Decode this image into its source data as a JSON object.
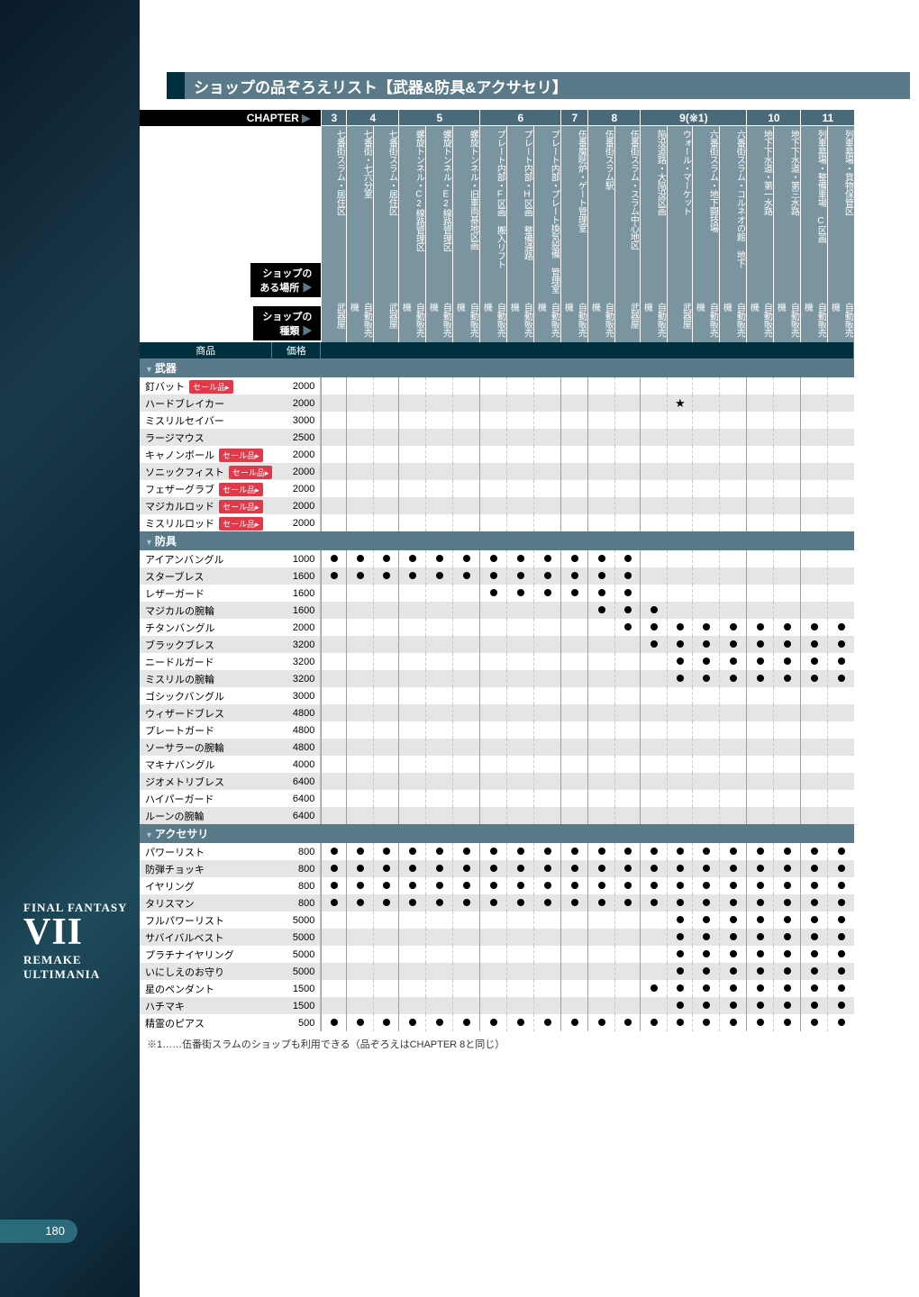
{
  "page_number": "180",
  "sidebar": {
    "line1": "FINAL FANTASY",
    "line2": "VII",
    "line3": "REMAKE",
    "line4": "ULTIMANIA"
  },
  "title": "ショップの品ぞろえリスト【武器&防具&アクサセリ】",
  "chapter_label": "CHAPTER",
  "location_label": "ショップの\nある場所",
  "shoptype_label": "ショップの\n種類",
  "col_item": "商品",
  "col_price": "価格",
  "chapters": [
    {
      "label": "3",
      "span": 1
    },
    {
      "label": "4",
      "span": 2
    },
    {
      "label": "5",
      "span": 3
    },
    {
      "label": "6",
      "span": 3
    },
    {
      "label": "7",
      "span": 1
    },
    {
      "label": "8",
      "span": 2
    },
    {
      "label": "9(※1)",
      "span": 4
    },
    {
      "label": "10",
      "span": 2
    },
    {
      "label": "11",
      "span": 2
    }
  ],
  "chapter_boundaries": [
    0,
    1,
    3,
    6,
    9,
    10,
    12,
    16,
    18
  ],
  "locations": [
    "七番街スラム・居住区",
    "七番街・七六分室",
    "七番街スラム・居住区",
    "螺旋トンネル・C2線路管理区",
    "螺旋トンネル・E2線路管理区",
    "螺旋トンネル・旧車両基地区画",
    "プレート内部・F区画 搬入リフト",
    "プレート内部・H区画 整備通路",
    "プレート内部・プレート換気設備 管理室",
    "伍番魔晄炉・ゲート管理室",
    "伍番街スラム駅",
    "伍番街スラム・スラム中心地区",
    "陥没道路・大陥没区画",
    "ウォール・マーケット",
    "六番街スラム・地下闘技場",
    "六番街スラム・コルネオの館 地下",
    "地下下水道・第一水路",
    "地下下水道・第三水路",
    "列車墓場・整備車場 C区画",
    "列車墓場・貨物保管区"
  ],
  "shoptypes": [
    "武器屋",
    "自動販売機",
    "武器屋",
    "自動販売機",
    "自動販売機",
    "自動販売機",
    "自動販売機",
    "自動販売機",
    "自動販売機",
    "自動販売機",
    "自動販売機",
    "武器屋",
    "自動販売機",
    "武器屋",
    "自動販売機",
    "自動販売機",
    "自動販売機",
    "自動販売機",
    "自動販売機",
    "自動販売機"
  ],
  "sections": [
    {
      "title": "武器",
      "items": [
        {
          "name": "釘バット",
          "sale": true,
          "price": "2000",
          "dots": []
        },
        {
          "name": "ハードブレイカー",
          "sale": false,
          "price": "2000",
          "dots": [],
          "star": 13
        },
        {
          "name": "ミスリルセイバー",
          "sale": false,
          "price": "3000",
          "dots": []
        },
        {
          "name": "ラージマウス",
          "sale": false,
          "price": "2500",
          "dots": []
        },
        {
          "name": "キャノンボール",
          "sale": true,
          "price": "2000",
          "dots": []
        },
        {
          "name": "ソニックフィスト",
          "sale": true,
          "price": "2000",
          "dots": []
        },
        {
          "name": "フェザーグラブ",
          "sale": true,
          "price": "2000",
          "dots": []
        },
        {
          "name": "マジカルロッド",
          "sale": true,
          "price": "2000",
          "dots": []
        },
        {
          "name": "ミスリルロッド",
          "sale": true,
          "price": "2000",
          "dots": []
        }
      ]
    },
    {
      "title": "防具",
      "items": [
        {
          "name": "アイアンバングル",
          "price": "1000",
          "dots": [
            0,
            1,
            2,
            3,
            4,
            5,
            6,
            7,
            8,
            9,
            10,
            11
          ]
        },
        {
          "name": "スターブレス",
          "price": "1600",
          "dots": [
            0,
            1,
            2,
            3,
            4,
            5,
            6,
            7,
            8,
            9,
            10,
            11
          ]
        },
        {
          "name": "レザーガード",
          "price": "1600",
          "dots": [
            6,
            7,
            8,
            9,
            10,
            11
          ]
        },
        {
          "name": "マジカルの腕輪",
          "price": "1600",
          "dots": [
            10,
            11,
            12
          ]
        },
        {
          "name": "チタンバングル",
          "price": "2000",
          "dots": [
            11,
            12,
            13,
            14,
            15,
            16,
            17,
            18,
            19
          ]
        },
        {
          "name": "ブラックブレス",
          "price": "3200",
          "dots": [
            12,
            13,
            14,
            15,
            16,
            17,
            18,
            19
          ]
        },
        {
          "name": "ニードルガード",
          "price": "3200",
          "dots": [
            13,
            14,
            15,
            16,
            17,
            18,
            19
          ]
        },
        {
          "name": "ミスリルの腕輪",
          "price": "3200",
          "dots": [
            13,
            14,
            15,
            16,
            17,
            18,
            19
          ]
        },
        {
          "name": "ゴシックバングル",
          "price": "3000",
          "dots": []
        },
        {
          "name": "ウィザードブレス",
          "price": "4800",
          "dots": []
        },
        {
          "name": "プレートガード",
          "price": "4800",
          "dots": []
        },
        {
          "name": "ソーサラーの腕輪",
          "price": "4800",
          "dots": []
        },
        {
          "name": "マキナバングル",
          "price": "4000",
          "dots": []
        },
        {
          "name": "ジオメトリブレス",
          "price": "6400",
          "dots": []
        },
        {
          "name": "ハイパーガード",
          "price": "6400",
          "dots": []
        },
        {
          "name": "ルーンの腕輪",
          "price": "6400",
          "dots": []
        }
      ]
    },
    {
      "title": "アクセサリ",
      "items": [
        {
          "name": "パワーリスト",
          "price": "800",
          "dots": [
            0,
            1,
            2,
            3,
            4,
            5,
            6,
            7,
            8,
            9,
            10,
            11,
            12,
            13,
            14,
            15,
            16,
            17,
            18,
            19
          ]
        },
        {
          "name": "防弾チョッキ",
          "price": "800",
          "dots": [
            0,
            1,
            2,
            3,
            4,
            5,
            6,
            7,
            8,
            9,
            10,
            11,
            12,
            13,
            14,
            15,
            16,
            17,
            18,
            19
          ]
        },
        {
          "name": "イヤリング",
          "price": "800",
          "dots": [
            0,
            1,
            2,
            3,
            4,
            5,
            6,
            7,
            8,
            9,
            10,
            11,
            12,
            13,
            14,
            15,
            16,
            17,
            18,
            19
          ]
        },
        {
          "name": "タリスマン",
          "price": "800",
          "dots": [
            0,
            1,
            2,
            3,
            4,
            5,
            6,
            7,
            8,
            9,
            10,
            11,
            12,
            13,
            14,
            15,
            16,
            17,
            18,
            19
          ]
        },
        {
          "name": "フルパワーリスト",
          "price": "5000",
          "dots": [
            13,
            14,
            15,
            16,
            17,
            18,
            19
          ]
        },
        {
          "name": "サバイバルベスト",
          "price": "5000",
          "dots": [
            13,
            14,
            15,
            16,
            17,
            18,
            19
          ]
        },
        {
          "name": "プラチナイヤリング",
          "price": "5000",
          "dots": [
            13,
            14,
            15,
            16,
            17,
            18,
            19
          ]
        },
        {
          "name": "いにしえのお守り",
          "price": "5000",
          "dots": [
            13,
            14,
            15,
            16,
            17,
            18,
            19
          ]
        },
        {
          "name": "星のペンダント",
          "price": "1500",
          "dots": [
            12,
            13,
            14,
            15,
            16,
            17,
            18,
            19
          ]
        },
        {
          "name": "ハチマキ",
          "price": "1500",
          "dots": [
            13,
            14,
            15,
            16,
            17,
            18,
            19
          ]
        },
        {
          "name": "精霊のピアス",
          "price": "500",
          "dots": [
            0,
            1,
            2,
            3,
            4,
            5,
            6,
            7,
            8,
            9,
            10,
            11,
            12,
            13,
            14,
            15,
            16,
            17,
            18,
            19
          ]
        }
      ]
    }
  ],
  "sale_tag_text": "セール品",
  "footnote": "※1……伍番街スラムのショップも利用できる（品ぞろえはCHAPTER 8と同じ）",
  "colors": {
    "header_bg": "#5a7a8a",
    "dark_bg": "#00303e",
    "vcell_bg": "#7a95a0",
    "row_odd": "#e5e5e5",
    "sale": "#e03a4a"
  },
  "col_count": 20,
  "name_col_w": 120,
  "price_col_w": 54,
  "dot_col_w": 28
}
